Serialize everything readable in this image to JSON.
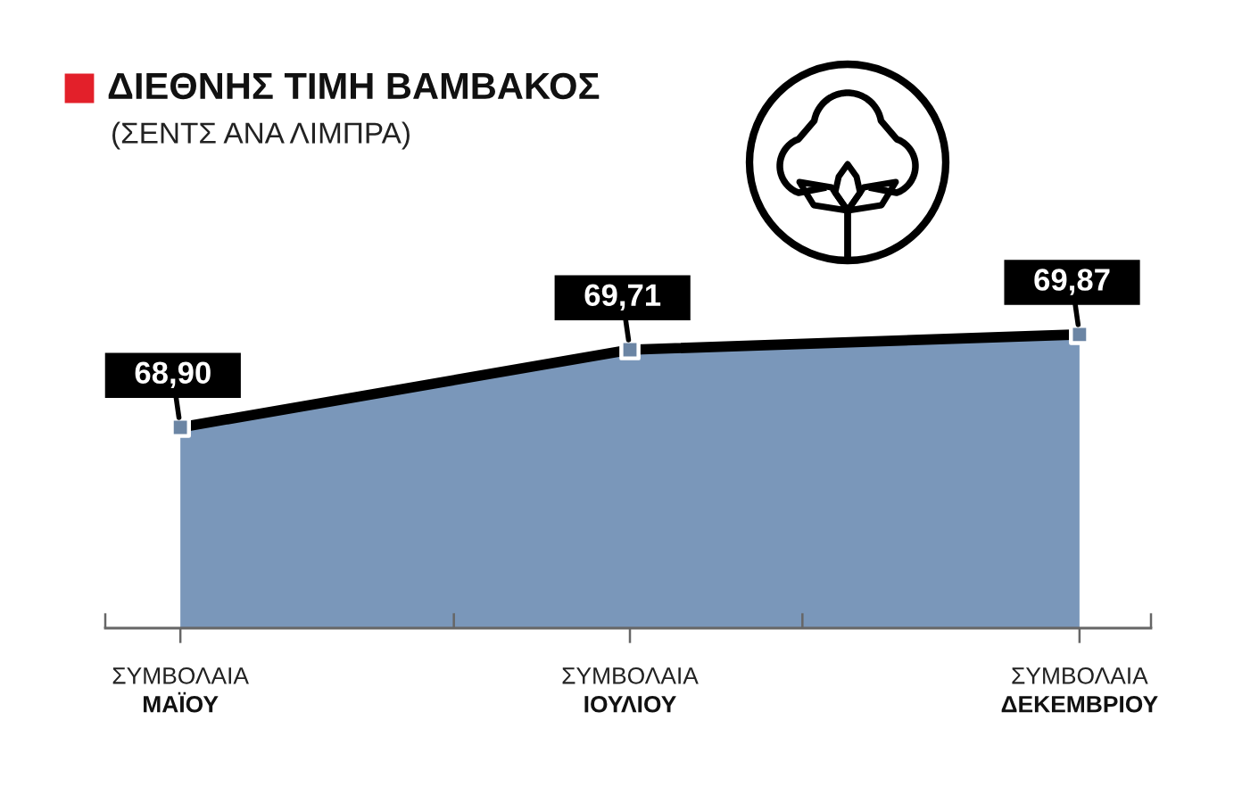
{
  "chart_data": {
    "type": "area",
    "title": "ΔΙΕΘΝΗΣ ΤΙΜΗ ΒΑΜΒΑΚΟΣ",
    "subtitle": "(ΣΕΝΤΣ ΑΝΑ ΛΙΜΠΡΑ)",
    "categories": [
      "ΣΥΜΒΟΛΑΙΑ\nΜΑΪΟΥ",
      "ΣΥΜΒΟΛΑΙΑ\nΙΟΥΛΙΟΥ",
      "ΣΥΜΒΟΛΑΙΑ\nΔΕΚΕΜΒΡΙΟΥ"
    ],
    "series": [
      {
        "color": "#7a97ba",
        "values": [
          68.9,
          69.71,
          69.87
        ],
        "value_labels": [
          "68,90",
          "69,71",
          "69,87"
        ]
      }
    ],
    "marker": "square",
    "line_style": "solid",
    "tick_labels": "x"
  }
}
